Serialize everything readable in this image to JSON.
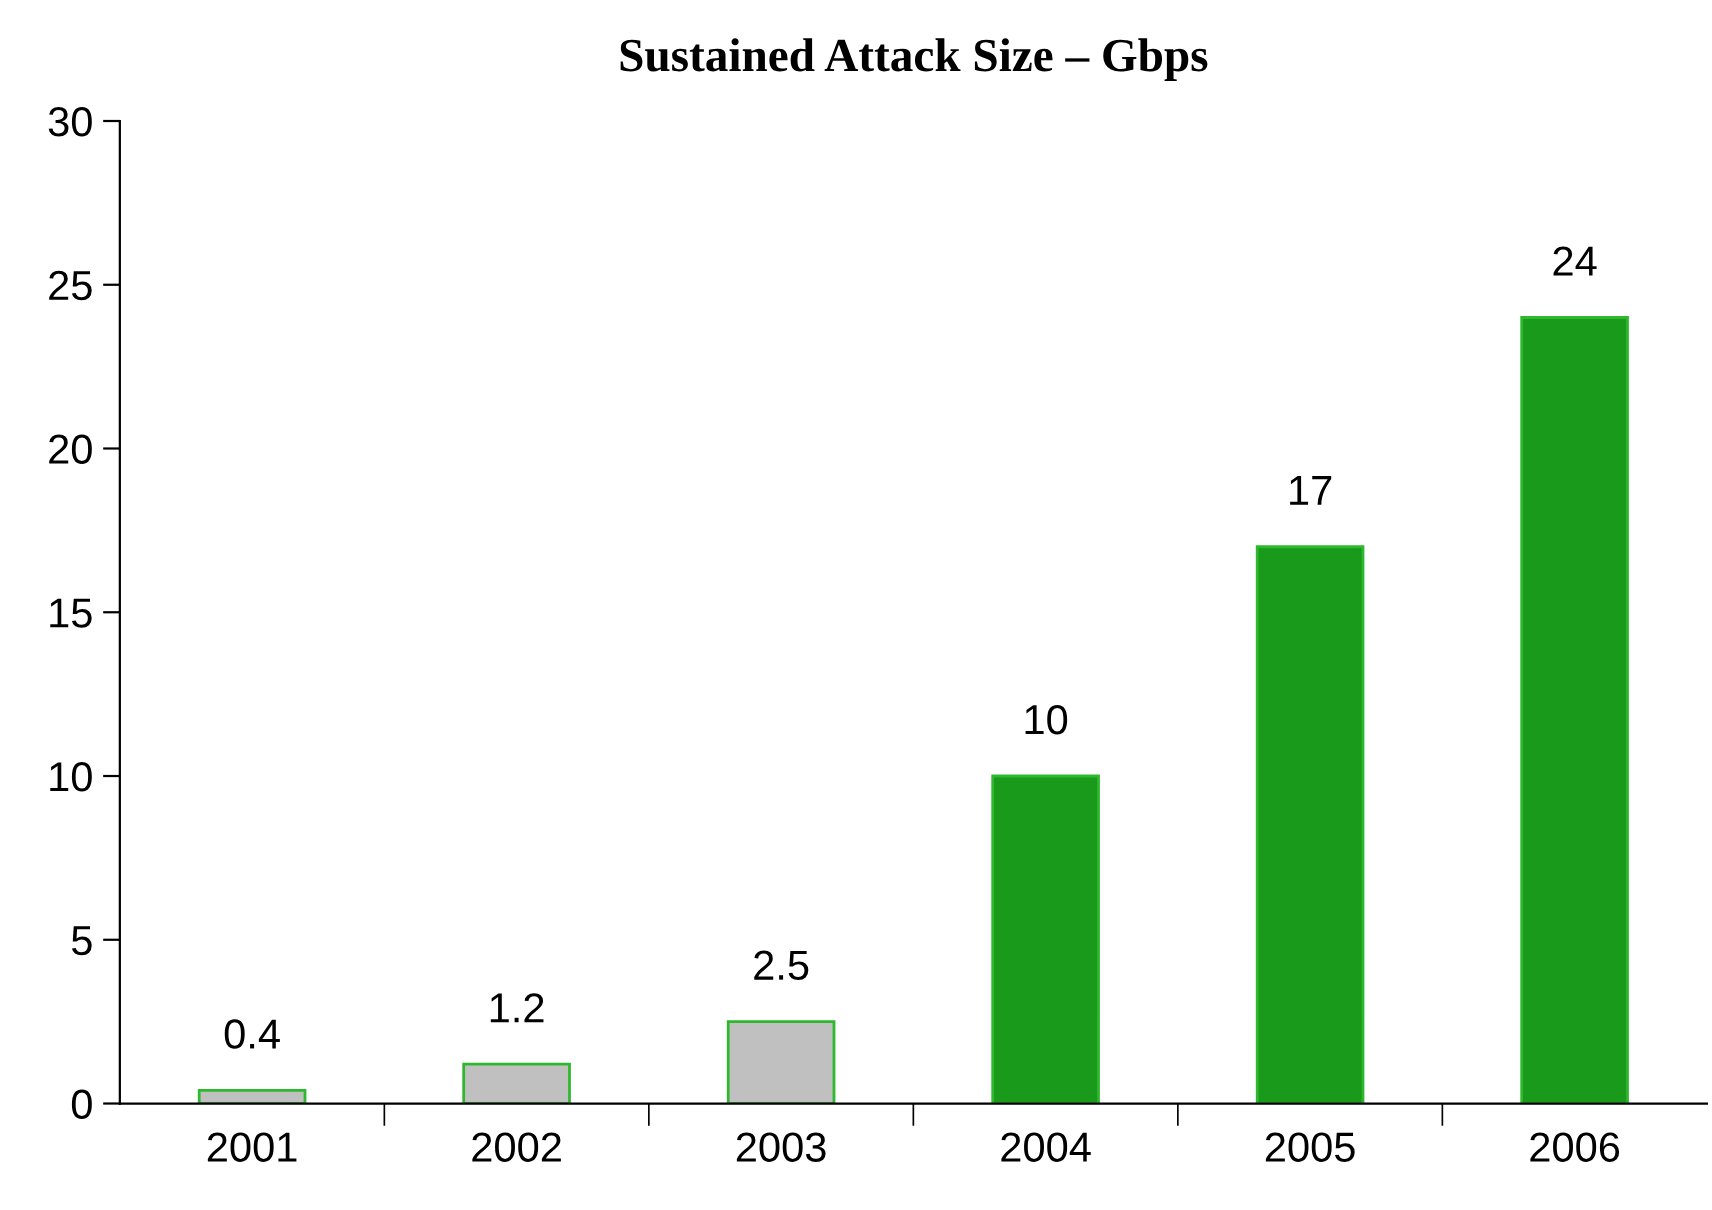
{
  "chart_data": {
    "type": "bar",
    "title": "Sustained Attack Size – Gbps",
    "categories": [
      "2001",
      "2002",
      "2003",
      "2004",
      "2005",
      "2006"
    ],
    "values": [
      0.4,
      1.2,
      2.5,
      10,
      17,
      24
    ],
    "colors": [
      "#c0c0c0",
      "#c0c0c0",
      "#c0c0c0",
      "#1a9a1a",
      "#1a9a1a",
      "#1a9a1a"
    ],
    "ylim": [
      0,
      30
    ],
    "yticks": [
      0,
      5,
      10,
      15,
      20,
      25,
      30
    ],
    "grid": false,
    "data_labels": true
  }
}
